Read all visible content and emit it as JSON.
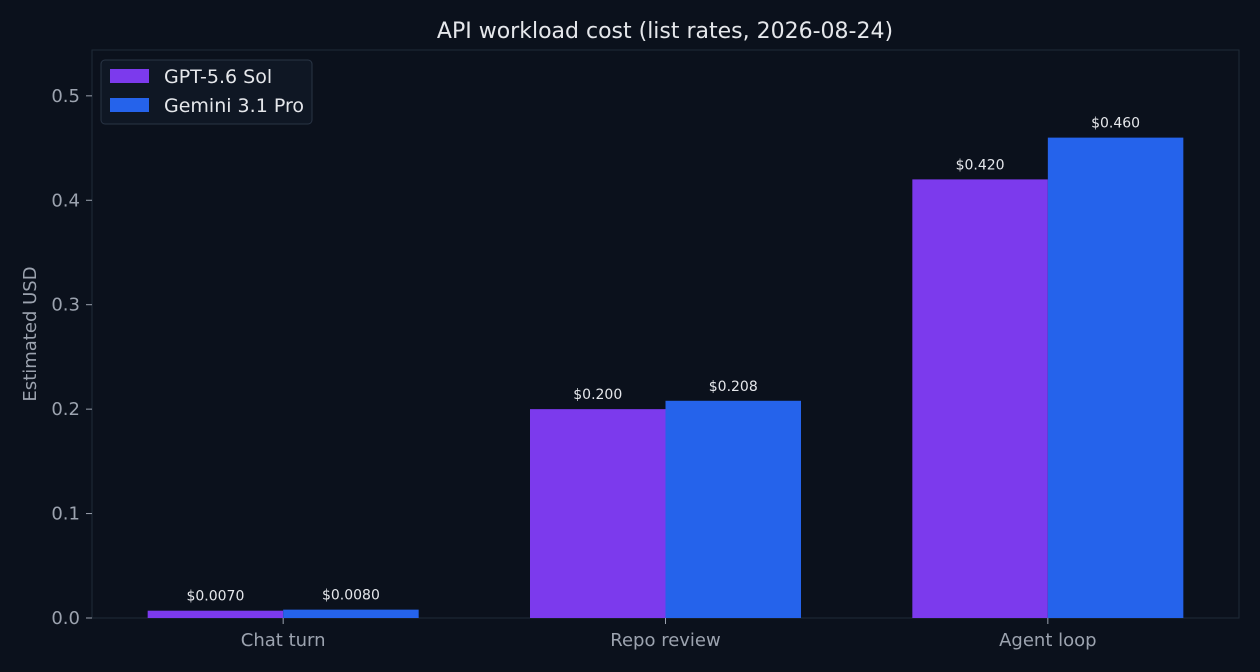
{
  "chart_data": {
    "type": "bar",
    "title": "API workload cost (list rates, 2026-08-24)",
    "xlabel": "",
    "ylabel": "Estimated USD",
    "categories": [
      "Chat turn",
      "Repo review",
      "Agent loop"
    ],
    "series": [
      {
        "name": "GPT-5.6 Sol",
        "color": "#7c3aed",
        "values": [
          0.007,
          0.2,
          0.42
        ],
        "labels": [
          "$0.0070",
          "$0.200",
          "$0.420"
        ]
      },
      {
        "name": "Gemini 3.1 Pro",
        "color": "#2563eb",
        "values": [
          0.008,
          0.208,
          0.46
        ],
        "labels": [
          "$0.0080",
          "$0.208",
          "$0.460"
        ]
      }
    ],
    "ylim": [
      0,
      0.5439
    ],
    "yticks": [
      {
        "value": 0.0,
        "label": "0.0"
      },
      {
        "value": 0.1,
        "label": "0.1"
      },
      {
        "value": 0.2,
        "label": "0.2"
      },
      {
        "value": 0.3,
        "label": "0.3"
      },
      {
        "value": 0.4,
        "label": "0.4"
      },
      {
        "value": 0.5,
        "label": "0.5"
      }
    ],
    "grid": false,
    "legend_position": "top-left",
    "colors": {
      "background": "#0b111c",
      "axes_border": "#1f2a37",
      "text": "#e5e7eb",
      "tick_text": "#9ca3af",
      "legend_bg": "#0f1724",
      "legend_border": "#2a3545"
    }
  }
}
